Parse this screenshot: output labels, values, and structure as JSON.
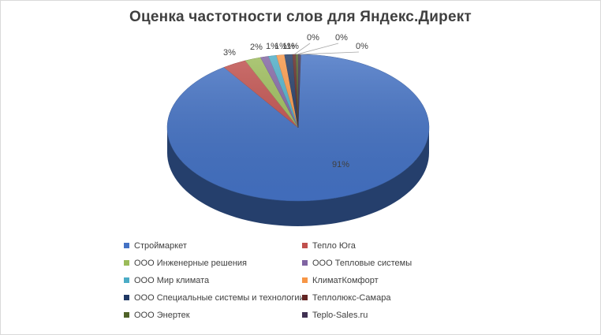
{
  "chart_data": {
    "type": "pie",
    "title": "Оценка частотности  слов для Яндекс.Директ",
    "series": [
      {
        "name": "Строймаркет",
        "value": 91,
        "label": "91%",
        "color": "#4472c4"
      },
      {
        "name": "Тепло Юга",
        "value": 3,
        "label": "3%",
        "color": "#c0504d"
      },
      {
        "name": "ООО Инженерные решения",
        "value": 2,
        "label": "2%",
        "color": "#9bbb59"
      },
      {
        "name": "ООО Тепловые системы",
        "value": 1,
        "label": "1%",
        "color": "#8064a2"
      },
      {
        "name": "ООО Мир климата",
        "value": 1,
        "label": "1%",
        "color": "#4bacc6"
      },
      {
        "name": "КлиматКомфорт",
        "value": 1,
        "label": "1%",
        "color": "#f79646"
      },
      {
        "name": "ООО Специальные системы и технологии",
        "value": 1,
        "label": "1%",
        "color": "#1f3864"
      },
      {
        "name": "Теплолюкс-Самара",
        "value": 0.4,
        "label": "0%",
        "color": "#632523"
      },
      {
        "name": "ООО Энертек",
        "value": 0.3,
        "label": "0%",
        "color": "#4f6228"
      },
      {
        "name": "Teplo-Sales.ru",
        "value": 0.3,
        "label": "0%",
        "color": "#403152"
      }
    ],
    "legend_position": "bottom"
  }
}
